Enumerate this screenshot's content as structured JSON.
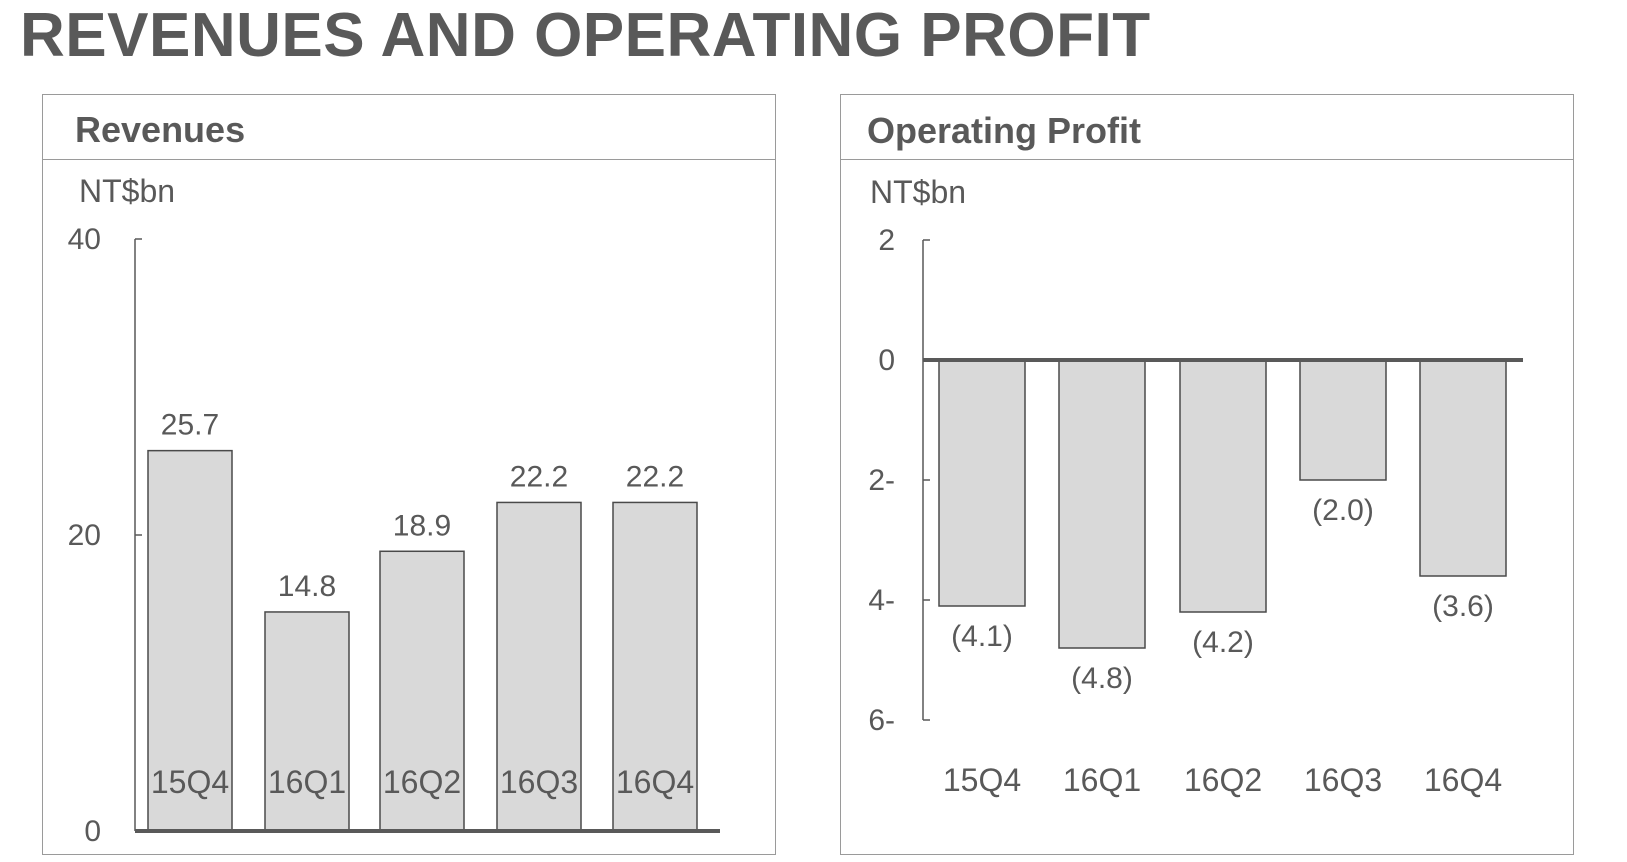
{
  "page": {
    "title": "REVENUES AND OPERATING PROFIT"
  },
  "colors": {
    "bar_fill": "#d9d9d9",
    "bar_stroke": "#4a4a4a",
    "axis": "#595959",
    "text": "#595959"
  },
  "chart_data": [
    {
      "type": "bar",
      "title": "Revenues",
      "ylabel": "NT$bn",
      "xlabel": "",
      "categories": [
        "15Q4",
        "16Q1",
        "16Q2",
        "16Q3",
        "16Q4"
      ],
      "values": [
        25.7,
        14.8,
        18.9,
        22.2,
        22.2
      ],
      "value_labels": [
        "25.7",
        "14.8",
        "18.9",
        "22.2",
        "22.2"
      ],
      "ylim": [
        0,
        40
      ],
      "yticks": [
        0,
        20,
        40
      ],
      "ytick_labels": [
        "0",
        "20",
        "40"
      ],
      "grid": false,
      "legend": "none"
    },
    {
      "type": "bar",
      "title": "Operating Profit",
      "ylabel": "NT$bn",
      "xlabel": "",
      "categories": [
        "15Q4",
        "16Q1",
        "16Q2",
        "16Q3",
        "16Q4"
      ],
      "values": [
        -4.1,
        -4.8,
        -4.2,
        -2.0,
        -3.6
      ],
      "value_labels": [
        "(4.1)",
        "(4.8)",
        "(4.2)",
        "(2.0)",
        "(3.6)"
      ],
      "ylim": [
        -6,
        2
      ],
      "yticks": [
        2,
        0,
        -2,
        -4,
        -6
      ],
      "ytick_labels": [
        "2",
        "0",
        "2-",
        "4-",
        "6-"
      ],
      "grid": false,
      "legend": "none"
    }
  ]
}
